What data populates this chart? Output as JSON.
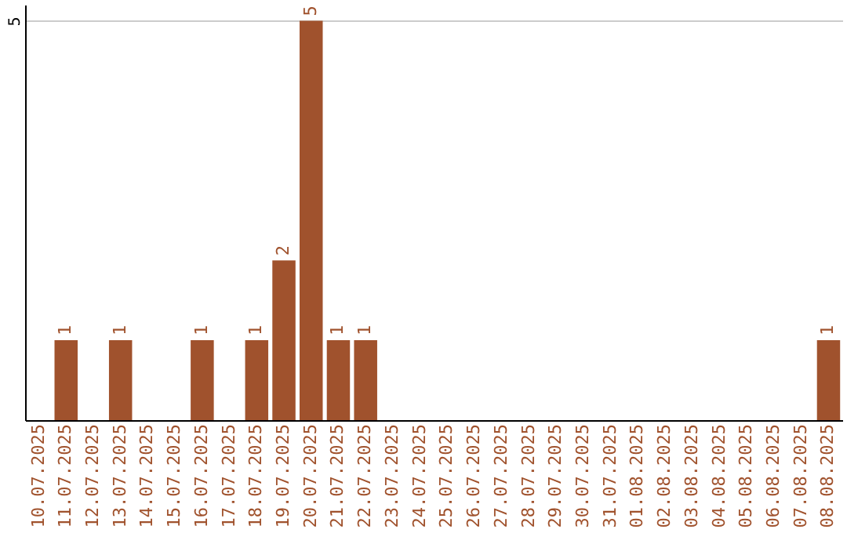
{
  "chart_data": {
    "type": "bar",
    "categories": [
      "10.07.2025",
      "11.07.2025",
      "12.07.2025",
      "13.07.2025",
      "14.07.2025",
      "15.07.2025",
      "16.07.2025",
      "17.07.2025",
      "18.07.2025",
      "19.07.2025",
      "20.07.2025",
      "21.07.2025",
      "22.07.2025",
      "23.07.2025",
      "24.07.2025",
      "25.07.2025",
      "26.07.2025",
      "27.07.2025",
      "28.07.2025",
      "29.07.2025",
      "30.07.2025",
      "31.07.2025",
      "01.08.2025",
      "02.08.2025",
      "03.08.2025",
      "04.08.2025",
      "05.08.2025",
      "06.08.2025",
      "07.08.2025",
      "08.08.2025"
    ],
    "values": [
      0,
      1,
      0,
      1,
      0,
      0,
      1,
      0,
      1,
      2,
      5,
      1,
      1,
      0,
      0,
      0,
      0,
      0,
      0,
      0,
      0,
      0,
      0,
      0,
      0,
      0,
      0,
      0,
      0,
      1
    ],
    "value_labels": [
      null,
      "1",
      null,
      "1",
      null,
      null,
      "1",
      null,
      "1",
      "2",
      "5",
      "1",
      "1",
      null,
      null,
      null,
      null,
      null,
      null,
      null,
      null,
      null,
      null,
      null,
      null,
      null,
      null,
      null,
      null,
      "1"
    ],
    "color": "#a0522d",
    "ylim": [
      0,
      5.2
    ],
    "yticks": [
      5
    ],
    "grid": "y"
  }
}
